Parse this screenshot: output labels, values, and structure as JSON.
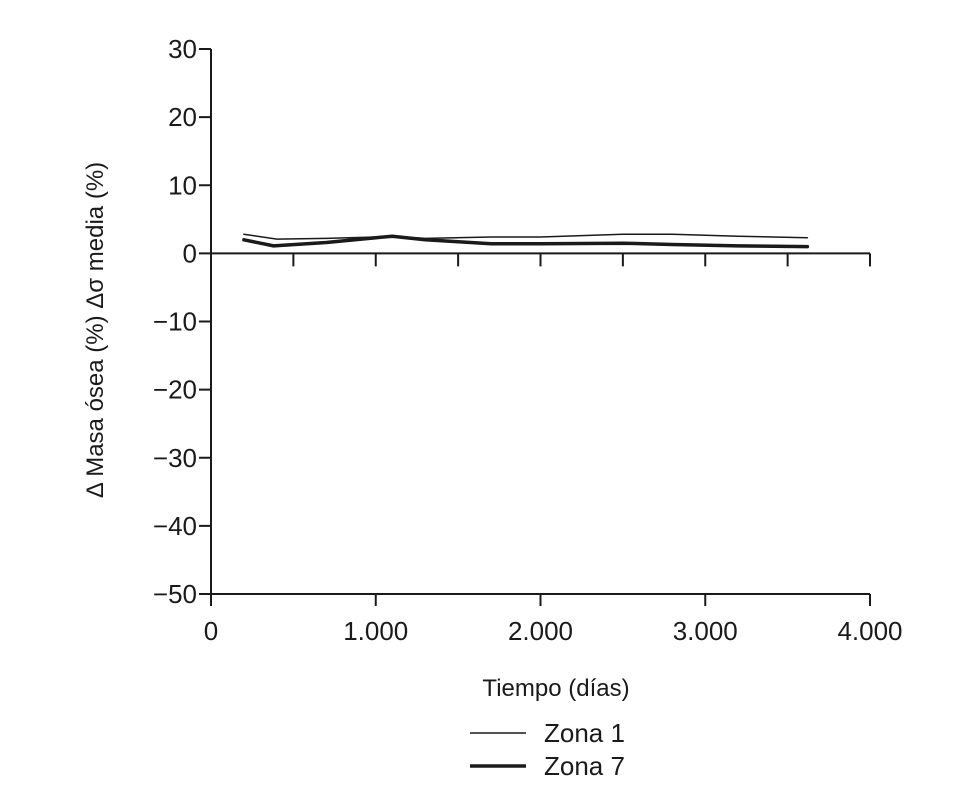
{
  "chart_data": {
    "type": "line",
    "title": "",
    "xlabel": "Tiempo (días)",
    "ylabel": "Δ Masa ósea (%) Δσ media (%)",
    "xlim": [
      0,
      4000
    ],
    "ylim": [
      -50,
      30
    ],
    "x_ticks": [
      0,
      1000,
      2000,
      3000,
      4000
    ],
    "x_tick_labels": [
      "0",
      "1.000",
      "2.000",
      "3.000",
      "4.000"
    ],
    "y_ticks": [
      30,
      20,
      10,
      0,
      -10,
      -20,
      -30,
      -40,
      -50
    ],
    "y_tick_labels": [
      "30",
      "20",
      "10",
      "0",
      "−10",
      "−20",
      "−30",
      "−40",
      "−50"
    ],
    "x_minor_ticks": [
      500,
      1500,
      2500,
      3500
    ],
    "grid": false,
    "legend_position": "bottom-center",
    "series": [
      {
        "name": "Zona 1",
        "style": "thin",
        "color": "#1a1a1a",
        "x": [
          200,
          400,
          700,
          1000,
          1100,
          1300,
          1700,
          2000,
          2500,
          2800,
          3200,
          3620
        ],
        "y": [
          2.8,
          2.1,
          2.2,
          2.4,
          2.5,
          2.2,
          2.4,
          2.4,
          2.8,
          2.8,
          2.5,
          2.3
        ]
      },
      {
        "name": "Zona 7",
        "style": "thick",
        "color": "#1a1a1a",
        "x": [
          200,
          380,
          700,
          1000,
          1100,
          1300,
          1700,
          2000,
          2500,
          2800,
          3200,
          3620
        ],
        "y": [
          2.0,
          1.1,
          1.6,
          2.3,
          2.5,
          2.0,
          1.4,
          1.4,
          1.5,
          1.3,
          1.1,
          1.0
        ]
      }
    ]
  }
}
